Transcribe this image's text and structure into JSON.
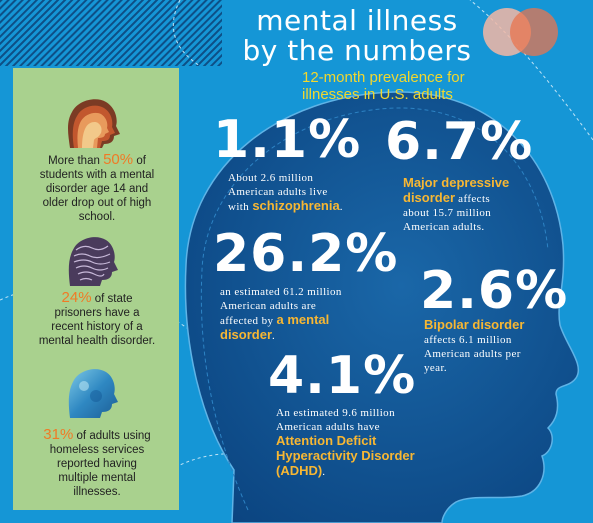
{
  "title": {
    "line1": "mental illness",
    "line2": "by the numbers"
  },
  "subtitle": {
    "line1": "12-month prevalence for",
    "line2": "illnesses in U.S. adults"
  },
  "sidebar": {
    "items": [
      {
        "icon": "head-profile-icon",
        "lines": [
          "More than",
          "50%",
          "of",
          "students with a mental",
          "disorder age 14 and",
          "older drop out of high",
          "school."
        ]
      },
      {
        "icon": "brain-head-icon",
        "lines": [
          "24%",
          "of state",
          "prisoners have a",
          "recent history of a",
          "mental health disorder."
        ]
      },
      {
        "icon": "blue-head-icon",
        "lines": [
          "31%",
          "of adults using",
          "homeless services",
          "reported having",
          "multiple mental",
          "illnesses."
        ]
      }
    ]
  },
  "stats": {
    "schizophrenia": {
      "value": "1.1%",
      "lines": [
        "About 2.6 million",
        "American adults live",
        "with"
      ],
      "highlight": "schizophrenia",
      "end": "."
    },
    "depression": {
      "value": "6.7%",
      "highlight1": "Major depressive",
      "highlight2": "disorder",
      "lines": [
        "affects",
        "about 15.7 million",
        "American adults."
      ]
    },
    "mental_disorder": {
      "value": "26.2%",
      "lines": [
        "an estimated 61.2 million",
        "American adults are",
        "affected by"
      ],
      "highlight1": "a mental",
      "highlight2": "disorder",
      "end": "."
    },
    "bipolar": {
      "value": "2.6%",
      "highlight": "Bipolar disorder",
      "lines": [
        "affects 6.1 million",
        "American adults per",
        "year."
      ]
    },
    "adhd": {
      "value": "4.1%",
      "lines": [
        "An estimated 9.6 million",
        "American adults have"
      ],
      "highlight1": "Attention Deficit",
      "highlight2": "Hyperactivity Disorder",
      "highlight3": "(ADHD)",
      "end": "."
    }
  },
  "colors": {
    "background": "#1596d6",
    "head": "#0f4f8e",
    "panel": "#a9d18e",
    "accent_yellow": "#f7b733",
    "accent_orange": "#f07a26"
  }
}
